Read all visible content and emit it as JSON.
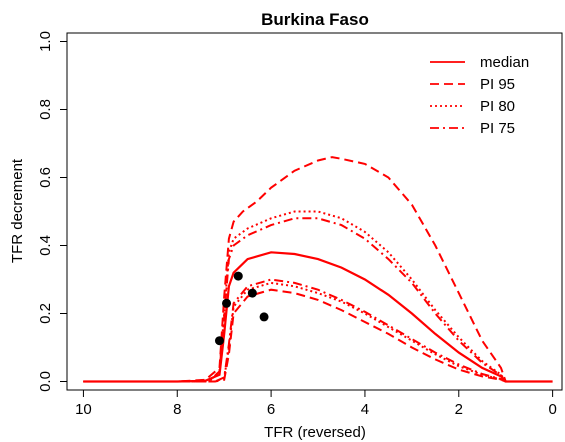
{
  "chart_data": {
    "type": "line",
    "title": "Burkina Faso",
    "xlabel": "TFR (reversed)",
    "ylabel": "TFR decrement",
    "xlim": [
      10,
      0
    ],
    "ylim": [
      0,
      1.0
    ],
    "x_reversed": true,
    "xticks": [
      10,
      8,
      6,
      4,
      2,
      0
    ],
    "yticks": [
      0.0,
      0.2,
      0.4,
      0.6,
      0.8,
      1.0
    ],
    "xtick_labels": [
      "10",
      "8",
      "6",
      "4",
      "2",
      "0"
    ],
    "ytick_labels": [
      "0.0",
      "0.2",
      "0.4",
      "0.6",
      "0.8",
      "1.0"
    ],
    "grid": false,
    "legend_position": "top-right",
    "colors": {
      "trajectories": "#bebebe",
      "median": "#ff0000",
      "intervals": "#ff0000",
      "observed": "#000000"
    },
    "trajectory_count": 80,
    "legend": [
      {
        "label": "median",
        "style": "solid"
      },
      {
        "label": "PI 95",
        "style": "dashed"
      },
      {
        "label": "PI 80",
        "style": "dotted"
      },
      {
        "label": "PI 75",
        "style": "dashdot"
      }
    ],
    "series": [
      {
        "name": "median",
        "style": "solid",
        "x": [
          10,
          8,
          7.4,
          7.1,
          7.0,
          6.9,
          6.8,
          6.5,
          6.0,
          5.5,
          5.0,
          4.5,
          4.0,
          3.5,
          3.0,
          2.5,
          2.0,
          1.5,
          1.1,
          1.0,
          0.5,
          0
        ],
        "y": [
          0,
          0,
          0.002,
          0.02,
          0.14,
          0.28,
          0.32,
          0.36,
          0.38,
          0.375,
          0.36,
          0.335,
          0.3,
          0.255,
          0.2,
          0.14,
          0.085,
          0.04,
          0.015,
          0,
          0,
          0
        ]
      },
      {
        "name": "PI 95",
        "style": "dashed",
        "x": [
          10,
          8,
          7.4,
          7.1,
          7.0,
          6.9,
          6.8,
          6.6,
          6.3,
          6.0,
          5.5,
          5.0,
          4.7,
          4.5,
          4.0,
          3.5,
          3.0,
          2.5,
          2.0,
          1.5,
          1.1,
          1.0,
          0.5,
          0
        ],
        "y": [
          0,
          0,
          0.005,
          0.04,
          0.25,
          0.42,
          0.47,
          0.5,
          0.53,
          0.57,
          0.62,
          0.65,
          0.66,
          0.655,
          0.64,
          0.6,
          0.52,
          0.4,
          0.26,
          0.12,
          0.04,
          0,
          0,
          0
        ]
      },
      {
        "name": "PI 95",
        "style": "dashed",
        "x": [
          10,
          8,
          7.2,
          7.0,
          6.9,
          6.8,
          6.5,
          6.0,
          5.5,
          5.0,
          4.5,
          4.0,
          3.5,
          3.0,
          2.5,
          2.0,
          1.5,
          1.1,
          1.0,
          0
        ],
        "y": [
          0,
          0,
          0,
          0.005,
          0.08,
          0.2,
          0.25,
          0.27,
          0.26,
          0.24,
          0.21,
          0.175,
          0.14,
          0.1,
          0.065,
          0.035,
          0.015,
          0.005,
          0,
          0
        ]
      },
      {
        "name": "PI 80",
        "style": "dotted",
        "x": [
          10,
          8,
          7.3,
          7.1,
          7.0,
          6.9,
          6.8,
          6.5,
          6.0,
          5.5,
          5.0,
          4.5,
          4.0,
          3.5,
          3.0,
          2.5,
          2.0,
          1.5,
          1.1,
          1.0,
          0
        ],
        "y": [
          0,
          0,
          0.003,
          0.03,
          0.2,
          0.38,
          0.42,
          0.45,
          0.48,
          0.5,
          0.5,
          0.48,
          0.44,
          0.38,
          0.3,
          0.21,
          0.13,
          0.06,
          0.02,
          0,
          0
        ]
      },
      {
        "name": "PI 80",
        "style": "dotted",
        "x": [
          10,
          8,
          7.2,
          7.0,
          6.9,
          6.8,
          6.5,
          6.0,
          5.5,
          5.0,
          4.5,
          4.0,
          3.5,
          3.0,
          2.5,
          2.0,
          1.5,
          1.1,
          1.0,
          0
        ],
        "y": [
          0,
          0,
          0,
          0.01,
          0.1,
          0.22,
          0.27,
          0.29,
          0.28,
          0.26,
          0.235,
          0.2,
          0.16,
          0.12,
          0.08,
          0.045,
          0.02,
          0.006,
          0,
          0
        ]
      },
      {
        "name": "PI 75",
        "style": "dashdot",
        "x": [
          10,
          8,
          7.3,
          7.1,
          7.0,
          6.9,
          6.8,
          6.5,
          6.0,
          5.5,
          5.0,
          4.5,
          4.0,
          3.5,
          3.0,
          2.5,
          2.0,
          1.5,
          1.1,
          1.0,
          0
        ],
        "y": [
          0,
          0,
          0.003,
          0.03,
          0.19,
          0.36,
          0.4,
          0.43,
          0.46,
          0.48,
          0.48,
          0.46,
          0.42,
          0.36,
          0.29,
          0.2,
          0.12,
          0.055,
          0.018,
          0,
          0
        ]
      },
      {
        "name": "PI 75",
        "style": "dashdot",
        "x": [
          10,
          8,
          7.2,
          7.0,
          6.9,
          6.8,
          6.5,
          6.0,
          5.5,
          5.0,
          4.5,
          4.0,
          3.5,
          3.0,
          2.5,
          2.0,
          1.5,
          1.1,
          1.0,
          0
        ],
        "y": [
          0,
          0,
          0,
          0.012,
          0.11,
          0.23,
          0.28,
          0.3,
          0.29,
          0.27,
          0.24,
          0.205,
          0.165,
          0.125,
          0.085,
          0.05,
          0.022,
          0.007,
          0,
          0
        ]
      }
    ],
    "observed_points": [
      {
        "x": 7.1,
        "y": 0.12
      },
      {
        "x": 6.95,
        "y": 0.23
      },
      {
        "x": 6.7,
        "y": 0.31
      },
      {
        "x": 6.4,
        "y": 0.26
      },
      {
        "x": 6.15,
        "y": 0.19
      }
    ]
  }
}
